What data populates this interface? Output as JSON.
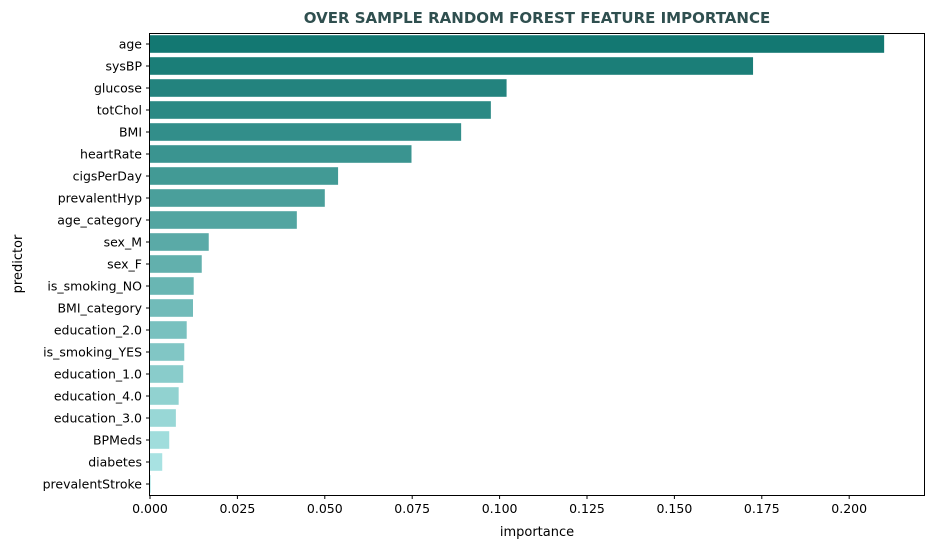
{
  "chart_data": {
    "type": "bar",
    "orientation": "horizontal",
    "title": "OVER SAMPLE RANDOM FOREST FEATURE IMPORTANCE",
    "title_color": "#2f4f4f",
    "xlabel": "importance",
    "ylabel": "predictor",
    "xlim": [
      0,
      0.2214
    ],
    "xticks": [
      0.0,
      0.025,
      0.05,
      0.075,
      0.1,
      0.125,
      0.15,
      0.175,
      0.2
    ],
    "xtick_labels": [
      "0.000",
      "0.025",
      "0.050",
      "0.075",
      "0.100",
      "0.125",
      "0.150",
      "0.175",
      "0.200"
    ],
    "grid": false,
    "legend": "none",
    "colormap": {
      "start": "#137872",
      "end": "#b0e8e8"
    },
    "categories": [
      "age",
      "sysBP",
      "glucose",
      "totChol",
      "BMI",
      "heartRate",
      "cigsPerDay",
      "prevalentHyp",
      "age_category",
      "sex_M",
      "sex_F",
      "is_smoking_NO",
      "BMI_category",
      "education_2.0",
      "is_smoking_YES",
      "education_1.0",
      "education_4.0",
      "education_3.0",
      "BPMeds",
      "diabetes",
      "prevalentStroke"
    ],
    "values": [
      0.21,
      0.1725,
      0.102,
      0.0975,
      0.089,
      0.0748,
      0.0538,
      0.05,
      0.042,
      0.0168,
      0.0148,
      0.0125,
      0.0123,
      0.0105,
      0.0098,
      0.0095,
      0.0082,
      0.0074,
      0.0055,
      0.0035,
      0.0002
    ]
  }
}
